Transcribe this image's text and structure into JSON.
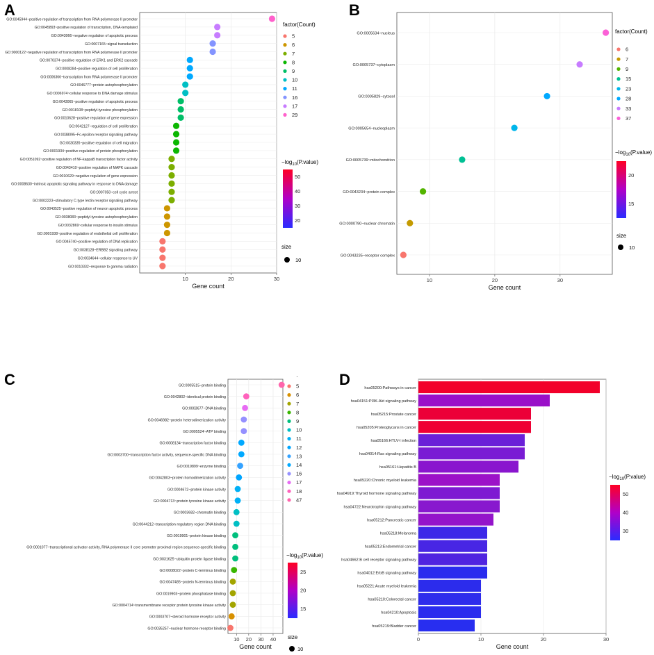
{
  "chart_data": [
    {
      "panel": "A",
      "type": "scatter",
      "xlabel": "Gene count",
      "xlim": [
        0,
        30
      ],
      "xticks": [
        10,
        20,
        30
      ],
      "categories": [
        "GO:0045944~positive regulation of transcription from RNA polymerase II promoter",
        "GO:0045893~positive regulation of transcription, DNA-templated",
        "GO:0043066~negative regulation of apoptotic process",
        "GO:0007165~signal transduction",
        "GO:0000122~negative regulation of transcription from RNA polymerase II promoter",
        "GO:0070374~positive regulation of ERK1 and ERK2 cascade",
        "GO:0008284~positive regulation of cell proliferation",
        "GO:0006366~transcription from RNA polymerase II promoter",
        "GO:0046777~protein autophosphorylation",
        "GO:0006974~cellular response to DNA damage stimulus",
        "GO:0043065~positive regulation of apoptotic process",
        "GO:0018108~peptidyl-tyrosine phosphorylation",
        "GO:0010628~positive regulation of gene expression",
        "GO:0042127~regulation of cell proliferation",
        "GO:0038095~Fc-epsilon receptor signaling pathway",
        "GO:0030335~positive regulation of cell migration",
        "GO:0001934~positive regulation of protein phosphorylation",
        "GO:0051092~positive regulation of NF-kappaB transcription factor activity",
        "GO:0043410~positive regulation of MAPK cascade",
        "GO:0010629~negative regulation of gene expression",
        "GO:0008630~intrinsic apoptotic signaling pathway in response to DNA damage",
        "GO:0007050~cell cycle arrest",
        "GO:0002223~stimulatory C-type lectin receptor signaling pathway",
        "GO:0043525~positive regulation of neuron apoptotic process",
        "GO:0038083~peptidyl-tyrosine autophosphorylation",
        "GO:0032869~cellular response to insulin stimulus",
        "GO:0001938~positive regulation of endothelial cell proliferation",
        "GO:0045740~positive regulation of DNA replication",
        "GO:0038128~ERBB2 signaling pathway",
        "GO:0034644~cellular response to UV",
        "GO:0010332~response to gamma radiation"
      ],
      "values": [
        29,
        17,
        17,
        16,
        16,
        11,
        11,
        11,
        10,
        10,
        9,
        9,
        9,
        8,
        8,
        8,
        8,
        7,
        7,
        7,
        7,
        7,
        7,
        6,
        6,
        6,
        6,
        5,
        5,
        5,
        5
      ],
      "legend_title": "factor(Count)",
      "legend_levels": [
        "5",
        "6",
        "7",
        "8",
        "9",
        "10",
        "11",
        "16",
        "17",
        "29"
      ],
      "legend_colors": [
        "#f8766d",
        "#cd9600",
        "#7cae00",
        "#0cb702",
        "#00be67",
        "#00bfc4",
        "#00a9ff",
        "#8494ff",
        "#c77cff",
        "#ff61cc"
      ],
      "color_title": "P.value",
      "color_ticks": [
        "50",
        "40",
        "30",
        "20"
      ],
      "size_title": "size",
      "size_label": "10"
    },
    {
      "panel": "B",
      "type": "scatter",
      "xlabel": "Gene count",
      "xlim": [
        5,
        38
      ],
      "xticks": [
        10,
        20,
        30
      ],
      "categories": [
        "GO:0005634~nucleus",
        "GO:0005737~cytoplasm",
        "GO:0005829~cytosol",
        "GO:0005654~nucleoplasm",
        "GO:0005739~mitochondrion",
        "GO:0043234~protein complex",
        "GO:0000790~nuclear chromatin",
        "GO:0043235~receptor complex"
      ],
      "values": [
        37,
        33,
        28,
        23,
        15,
        9,
        7,
        6
      ],
      "legend_title": "factor(Count)",
      "legend_levels": [
        "6",
        "7",
        "9",
        "15",
        "23",
        "28",
        "33",
        "37"
      ],
      "legend_colors": [
        "#f8766d",
        "#c49a00",
        "#53b400",
        "#00c094",
        "#00b6eb",
        "#00a9ff",
        "#c77cff",
        "#fb61d7"
      ],
      "color_title": "P.value",
      "color_ticks": [
        "20",
        "15"
      ],
      "size_title": "size",
      "size_label": "10"
    },
    {
      "panel": "C",
      "type": "scatter",
      "xlabel": "Gene count",
      "xlim": [
        3,
        48
      ],
      "xticks": [
        10,
        20,
        30,
        40
      ],
      "categories": [
        "GO:0005515~protein binding",
        "GO:0042802~identical protein binding",
        "GO:0003677~DNA binding",
        "GO:0046982~protein heterodimerization activity",
        "GO:0005524~ATP binding",
        "GO:0008134~transcription factor binding",
        "GO:0003700~transcription factor activity, sequence-specific DNA binding",
        "GO:0019899~enzyme binding",
        "GO:0042803~protein homodimerization activity",
        "GO:0004672~protein kinase activity",
        "GO:0004713~protein tyrosine kinase activity",
        "GO:0003682~chromatin binding",
        "GO:0044212~transcription regulatory region DNA binding",
        "GO:0019901~protein kinase binding",
        "GO:0001077~transcriptional activator activity, RNA polymerase II core promoter proximal region sequence-specific binding",
        "GO:0031625~ubiquitin protein ligase binding",
        "GO:0008022~protein C-terminus binding",
        "GO:0047485~protein N-terminus binding",
        "GO:0019903~protein phosphatase binding",
        "GO:0004714~transmembrane receptor protein tyrosine kinase activity",
        "GO:0003707~steroid hormone receptor activity",
        "GO:0035257~nuclear hormone receptor binding"
      ],
      "values": [
        47,
        18,
        17,
        16,
        16,
        14,
        14,
        13,
        12,
        11,
        11,
        10,
        10,
        9,
        9,
        9,
        8,
        7,
        7,
        7,
        6,
        5
      ],
      "legend_title": "factor(Count)",
      "legend_levels": [
        "5",
        "6",
        "7",
        "8",
        "9",
        "10",
        "11",
        "12",
        "13",
        "14",
        "16",
        "17",
        "18",
        "47"
      ],
      "legend_colors": [
        "#f8766d",
        "#d89000",
        "#a3a500",
        "#39b600",
        "#00bf7d",
        "#00bfc4",
        "#00b0f6",
        "#00a5ff",
        "#35a2ff",
        "#00a9ff",
        "#9590ff",
        "#e76bf3",
        "#ff62bc",
        "#ff65ac"
      ],
      "color_title": "P.value",
      "color_ticks": [
        "25",
        "20",
        "15"
      ],
      "size_title": "size",
      "size_label": "10"
    },
    {
      "panel": "D",
      "type": "bar",
      "orientation": "horizontal",
      "xlabel": "Gene count",
      "xlim": [
        0,
        30
      ],
      "xticks": [
        0,
        10,
        20,
        30
      ],
      "categories": [
        "hsa05200:Pathways in cancer",
        "hsa04151:PI3K-Akt signaling pathway",
        "hsa05215:Prostate cancer",
        "hsa05205:Proteoglycans in cancer",
        "hsa05166:HTLV-I infection",
        "hsa04014:Ras signaling pathway",
        "hsa05161:Hepatitis B",
        "hsa05220:Chronic myeloid leukemia",
        "hsa04919:Thyroid hormone signaling pathway",
        "hsa04722:Neurotrophin signaling pathway",
        "hsa05212:Pancreatic cancer",
        "hsa05218:Melanoma",
        "hsa05213:Endometrial cancer",
        "hsa04662:B cell receptor signaling pathway",
        "hsa04012:ErbB signaling pathway",
        "hsa05221:Acute myeloid leukemia",
        "hsa05210:Colorectal cancer",
        "hsa04210:Apoptosis",
        "hsa05219:Bladder cancer"
      ],
      "values": [
        29,
        21,
        18,
        18,
        17,
        17,
        16,
        13,
        13,
        13,
        12,
        11,
        11,
        11,
        11,
        10,
        10,
        10,
        9
      ],
      "bar_colors": [
        "#f2002a",
        "#9a10c8",
        "#ec0038",
        "#ef0034",
        "#6a20d8",
        "#7a1cd4",
        "#8a16ce",
        "#9c12c8",
        "#7e1ad2",
        "#8818ce",
        "#9414ca",
        "#3c28e8",
        "#4826e4",
        "#5024e0",
        "#2a2cee",
        "#2c2cec",
        "#2e2cec",
        "#2a2cee",
        "#282ef0"
      ],
      "color_title": "P.value",
      "color_ticks": [
        "50",
        "40",
        "30"
      ]
    }
  ],
  "panels": {
    "A": "A",
    "B": "B",
    "C": "C",
    "D": "D"
  },
  "legend_text": {
    "log_prefix": "−log",
    "log_sub": "10",
    "log_suffix": "(P.value)",
    "c_stray": "·"
  }
}
